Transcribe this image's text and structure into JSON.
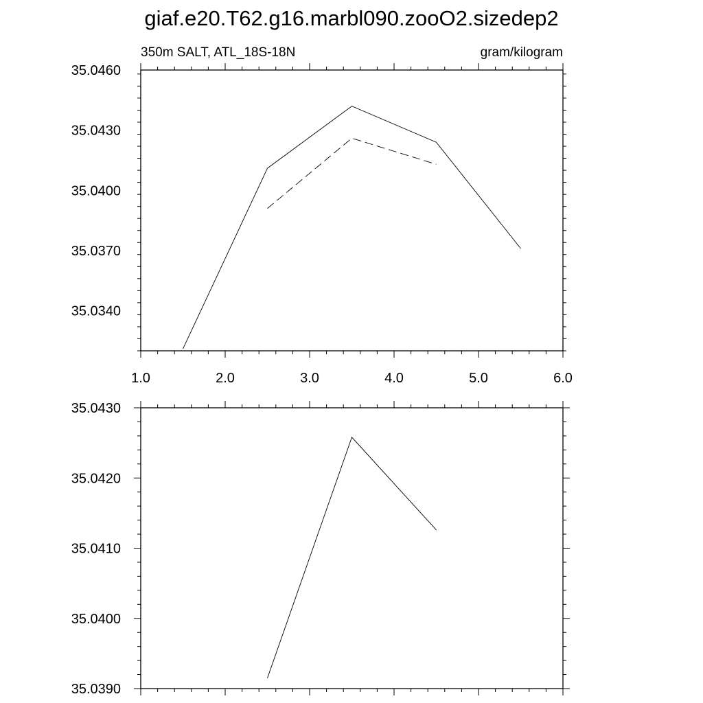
{
  "title": "giaf.e20.T62.g16.marbl090.zooO2.sizedep2",
  "chart_data": [
    {
      "type": "line",
      "left_label": "350m SALT, ATL_18S-18N",
      "right_label": "gram/kilogram",
      "xlim": [
        1.0,
        6.0
      ],
      "x_tick_labels": [
        "1.0",
        "2.0",
        "3.0",
        "4.0",
        "5.0",
        "6.0"
      ],
      "ylim": [
        35.032,
        35.046
      ],
      "y_tick_labels": [
        "35.0340",
        "35.0370",
        "35.0400",
        "35.0430",
        "35.0460"
      ],
      "series": [
        {
          "style": "solid",
          "x": [
            1.5,
            2.5,
            3.5,
            4.5,
            5.5
          ],
          "y": [
            35.0321,
            35.0411,
            35.0442,
            35.0424,
            35.0371
          ]
        },
        {
          "style": "dashed",
          "x": [
            2.5,
            3.5,
            4.5
          ],
          "y": [
            35.0391,
            35.0426,
            35.0413
          ]
        }
      ]
    },
    {
      "type": "line",
      "xlim": [
        1.0,
        6.0
      ],
      "ylim": [
        35.039,
        35.043
      ],
      "y_tick_labels": [
        "35.0390",
        "35.0400",
        "35.0410",
        "35.0420",
        "35.0430"
      ],
      "series": [
        {
          "style": "solid",
          "x": [
            2.5,
            3.5,
            4.5
          ],
          "y": [
            35.03915,
            35.04258,
            35.04126
          ]
        }
      ]
    }
  ]
}
